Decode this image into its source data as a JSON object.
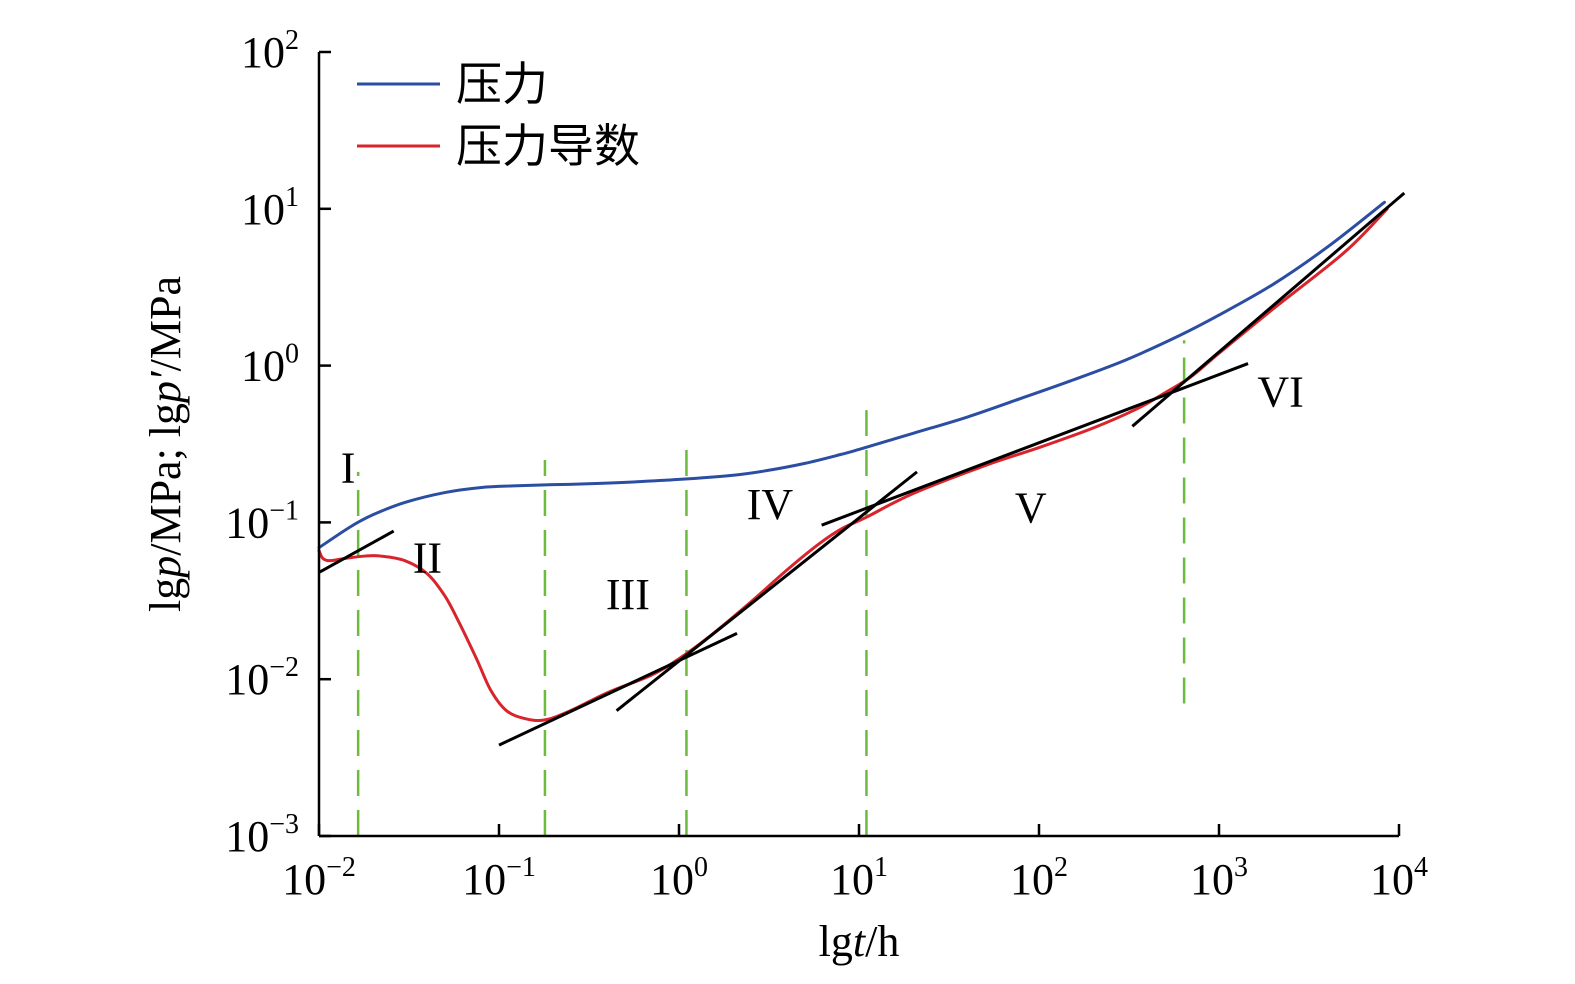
{
  "chart_data": {
    "type": "line",
    "x_scale": "log",
    "y_scale": "log",
    "xlim": [
      0.01,
      10000
    ],
    "ylim": [
      0.001,
      100
    ],
    "xlabel": {
      "pre": "lg",
      "italic": "t",
      "post": "/h"
    },
    "ylabel": {
      "p1": "lg",
      "i1": "p",
      "p2": "/MPa; lg",
      "i2": "p′",
      "p3": "/MPa"
    },
    "x_ticks": [
      {
        "base": "10",
        "exp": "−2",
        "value": 0.01
      },
      {
        "base": "10",
        "exp": "−1",
        "value": 0.1
      },
      {
        "base": "10",
        "exp": "0",
        "value": 1
      },
      {
        "base": "10",
        "exp": "1",
        "value": 10
      },
      {
        "base": "10",
        "exp": "2",
        "value": 100
      },
      {
        "base": "10",
        "exp": "3",
        "value": 1000
      },
      {
        "base": "10",
        "exp": "4",
        "value": 10000
      }
    ],
    "y_ticks": [
      {
        "base": "10",
        "exp": "−3",
        "value": 0.001
      },
      {
        "base": "10",
        "exp": "−2",
        "value": 0.01
      },
      {
        "base": "10",
        "exp": "−1",
        "value": 0.1
      },
      {
        "base": "10",
        "exp": "0",
        "value": 1
      },
      {
        "base": "10",
        "exp": "1",
        "value": 10
      },
      {
        "base": "10",
        "exp": "2",
        "value": 100
      }
    ],
    "legend_position": "top-left",
    "series": [
      {
        "name": "压力",
        "color": "#2b4ea2",
        "points": [
          [
            0.01,
            0.069
          ],
          [
            0.015,
            0.094
          ],
          [
            0.02,
            0.112
          ],
          [
            0.03,
            0.134
          ],
          [
            0.05,
            0.155
          ],
          [
            0.08,
            0.167
          ],
          [
            0.12,
            0.171
          ],
          [
            0.2,
            0.174
          ],
          [
            0.3,
            0.176
          ],
          [
            0.5,
            0.18
          ],
          [
            1.0,
            0.188
          ],
          [
            2.0,
            0.2
          ],
          [
            3.0,
            0.213
          ],
          [
            5.0,
            0.238
          ],
          [
            8.0,
            0.272
          ],
          [
            10,
            0.292
          ],
          [
            20,
            0.37
          ],
          [
            40,
            0.47
          ],
          [
            80,
            0.62
          ],
          [
            150,
            0.8
          ],
          [
            300,
            1.08
          ],
          [
            600,
            1.55
          ],
          [
            1000,
            2.1
          ],
          [
            2000,
            3.3
          ],
          [
            4000,
            5.7
          ],
          [
            8300,
            11.0
          ]
        ]
      },
      {
        "name": "压力导数",
        "color": "#d9242b",
        "points": [
          [
            0.01,
            0.066
          ],
          [
            0.0105,
            0.059
          ],
          [
            0.0115,
            0.057
          ],
          [
            0.014,
            0.059
          ],
          [
            0.018,
            0.061
          ],
          [
            0.022,
            0.061
          ],
          [
            0.03,
            0.057
          ],
          [
            0.04,
            0.047
          ],
          [
            0.05,
            0.034
          ],
          [
            0.06,
            0.023
          ],
          [
            0.075,
            0.0135
          ],
          [
            0.09,
            0.0085
          ],
          [
            0.11,
            0.0063
          ],
          [
            0.14,
            0.0056
          ],
          [
            0.18,
            0.0055
          ],
          [
            0.25,
            0.0063
          ],
          [
            0.4,
            0.0082
          ],
          [
            0.7,
            0.0106
          ],
          [
            1.0,
            0.0135
          ],
          [
            1.5,
            0.019
          ],
          [
            2.5,
            0.031
          ],
          [
            4.0,
            0.05
          ],
          [
            6.0,
            0.073
          ],
          [
            8.0,
            0.091
          ],
          [
            11,
            0.108
          ],
          [
            20,
            0.153
          ],
          [
            50,
            0.23
          ],
          [
            100,
            0.3
          ],
          [
            200,
            0.4
          ],
          [
            350,
            0.53
          ],
          [
            500,
            0.67
          ],
          [
            700,
            0.85
          ],
          [
            1000,
            1.2
          ],
          [
            2000,
            2.3
          ],
          [
            5000,
            5.3
          ],
          [
            8600,
            10.0
          ]
        ]
      }
    ],
    "tangent_lines": [
      {
        "color": "#000000",
        "from": [
          0.01,
          0.048
        ],
        "to": [
          0.026,
          0.088
        ]
      },
      {
        "color": "#000000",
        "from": [
          0.1,
          0.0038
        ],
        "to": [
          2.1,
          0.0196
        ]
      },
      {
        "color": "#000000",
        "from": [
          0.45,
          0.0063
        ],
        "to": [
          21,
          0.21
        ]
      },
      {
        "color": "#000000",
        "from": [
          6.2,
          0.096
        ],
        "to": [
          1450,
          1.03
        ]
      },
      {
        "color": "#000000",
        "from": [
          330,
          0.41
        ],
        "to": [
          10700,
          12.6
        ]
      }
    ],
    "boundary_lines": {
      "color": "#6dbb3c",
      "lines": [
        {
          "x": 0.0165,
          "y_from": 0.001,
          "y_to": 0.21
        },
        {
          "x": 0.18,
          "y_from": 0.001,
          "y_to": 0.25
        },
        {
          "x": 1.1,
          "y_from": 0.001,
          "y_to": 0.29
        },
        {
          "x": 11,
          "y_from": 0.001,
          "y_to": 0.52
        },
        {
          "x": 640,
          "y_from": 0.007,
          "y_to": 1.45
        }
      ]
    },
    "regions": [
      {
        "label": "I",
        "x": 0.0145,
        "y": 0.18
      },
      {
        "label": "II",
        "x": 0.04,
        "y": 0.048
      },
      {
        "label": "III",
        "x": 0.52,
        "y": 0.028
      },
      {
        "label": "IV",
        "x": 3.2,
        "y": 0.105
      },
      {
        "label": "V",
        "x": 90,
        "y": 0.1
      },
      {
        "label": "VI",
        "x": 2200,
        "y": 0.55
      }
    ]
  }
}
